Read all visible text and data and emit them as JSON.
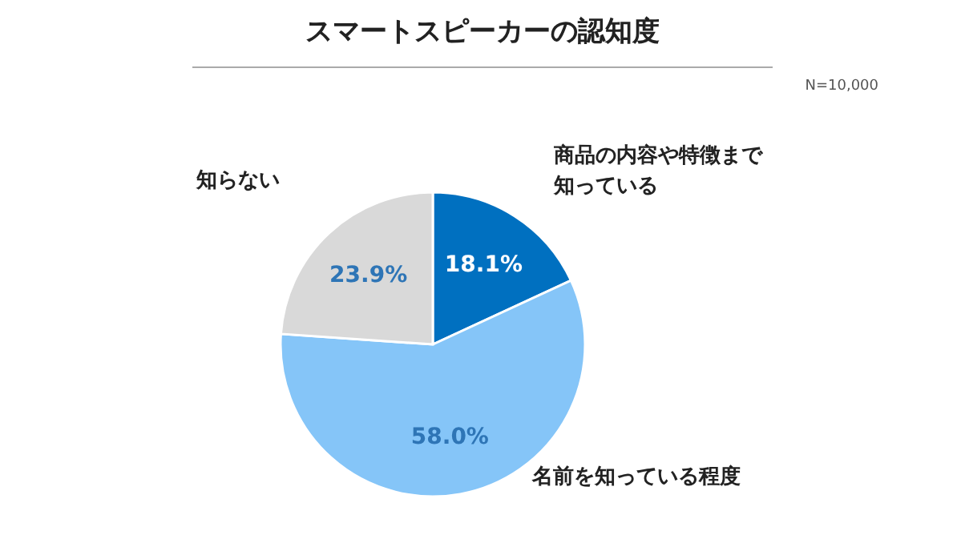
{
  "chart_data": {
    "type": "pie",
    "title": "スマートスピーカーの認知度",
    "categories": [
      "商品の内容や特徴まで知っている",
      "名前を知っている程度",
      "知らない"
    ],
    "values": [
      18.1,
      58.0,
      23.9
    ],
    "colors": [
      "#0070c0",
      "#85c5f8",
      "#d9d9d9"
    ],
    "value_labels": [
      "18.1%",
      "58.0%",
      "23.9%"
    ],
    "annotations": [
      "N=10,000"
    ]
  }
}
